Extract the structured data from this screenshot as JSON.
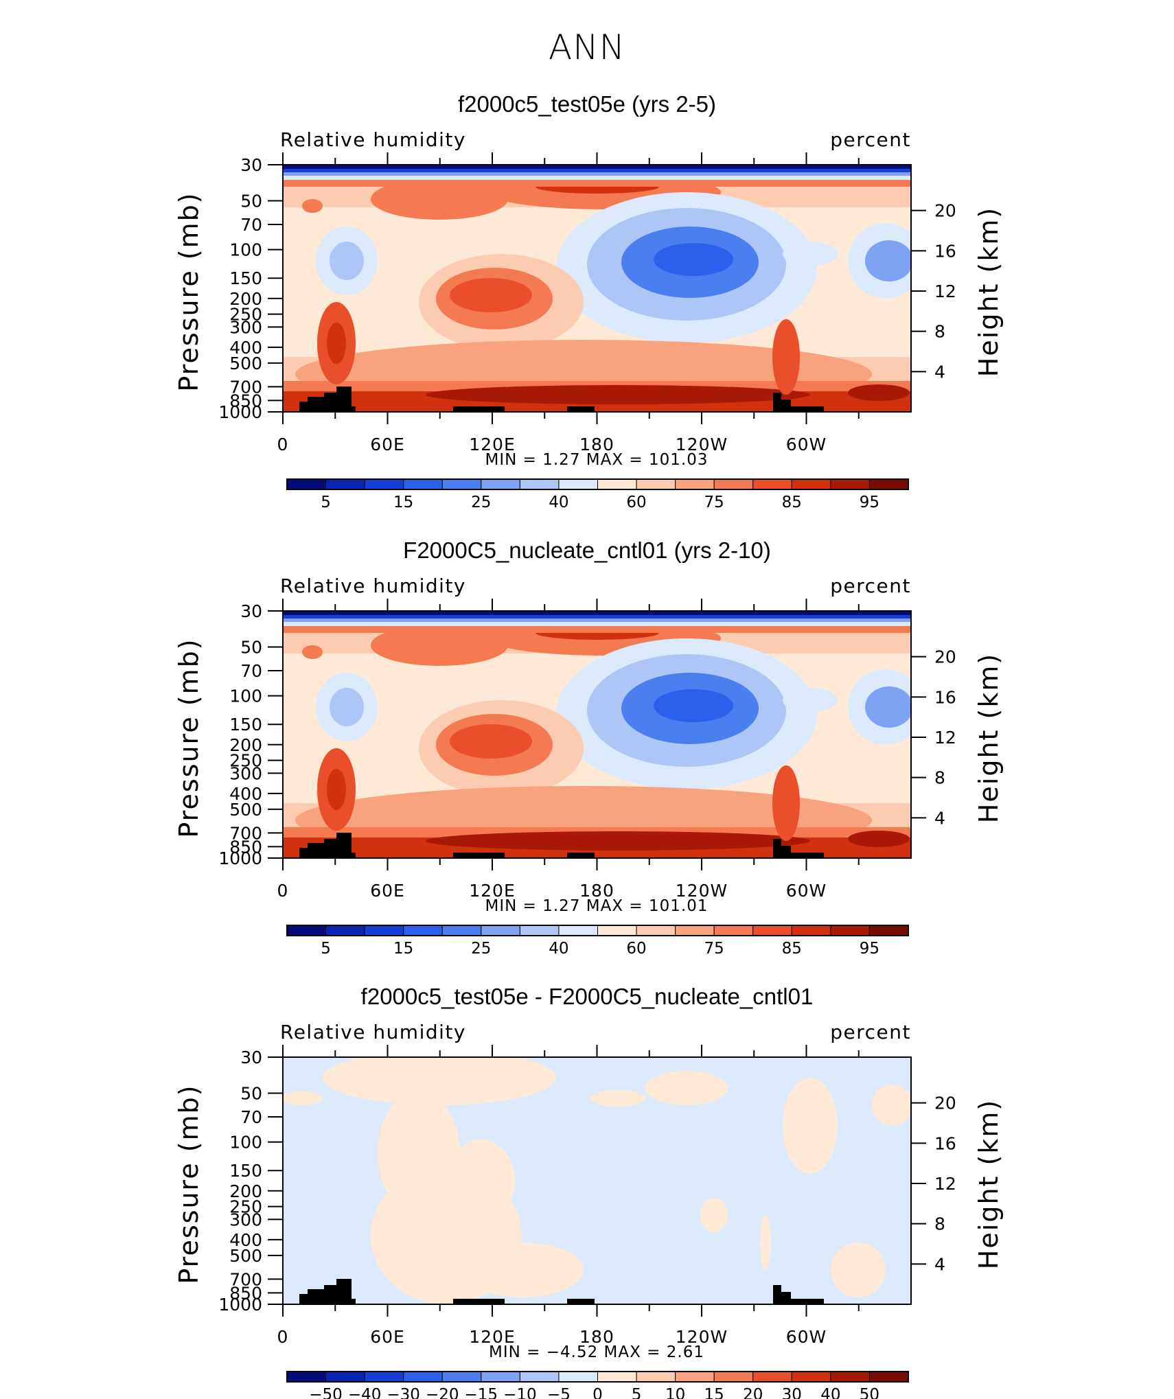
{
  "title": "ANN",
  "chart_data": [
    {
      "type": "heatmap",
      "title": "f2000c5_test05e (yrs 2-5)",
      "left_label": "Relative humidity",
      "right_label": "percent",
      "ylabel": "Pressure (mb)",
      "y2label": "Height (km)",
      "x_ticks": [
        "0",
        "60E",
        "120E",
        "180",
        "120W",
        "60W"
      ],
      "y_ticks": [
        "30",
        "50",
        "70",
        "100",
        "150",
        "200",
        "250",
        "300",
        "400",
        "500",
        "700",
        "850",
        "1000"
      ],
      "y2_ticks": [
        "20",
        "16",
        "12",
        "8",
        "4"
      ],
      "stats_text": "MIN =     1.27   MAX =  101.03",
      "min": 1.27,
      "max": 101.03,
      "colorbar_labels": [
        "5",
        "15",
        "25",
        "40",
        "60",
        "75",
        "85",
        "95"
      ],
      "colorbar_levels": [
        5,
        10,
        15,
        20,
        25,
        30,
        40,
        50,
        60,
        65,
        75,
        80,
        85,
        90,
        95
      ]
    },
    {
      "type": "heatmap",
      "title": "F2000C5_nucleate_cntl01 (yrs 2-10)",
      "left_label": "Relative humidity",
      "right_label": "percent",
      "ylabel": "Pressure (mb)",
      "y2label": "Height (km)",
      "x_ticks": [
        "0",
        "60E",
        "120E",
        "180",
        "120W",
        "60W"
      ],
      "y_ticks": [
        "30",
        "50",
        "70",
        "100",
        "150",
        "200",
        "250",
        "300",
        "400",
        "500",
        "700",
        "850",
        "1000"
      ],
      "y2_ticks": [
        "20",
        "16",
        "12",
        "8",
        "4"
      ],
      "stats_text": "MIN =     1.27   MAX =  101.01",
      "min": 1.27,
      "max": 101.01,
      "colorbar_labels": [
        "5",
        "15",
        "25",
        "40",
        "60",
        "75",
        "85",
        "95"
      ],
      "colorbar_levels": [
        5,
        10,
        15,
        20,
        25,
        30,
        40,
        50,
        60,
        65,
        75,
        80,
        85,
        90,
        95
      ]
    },
    {
      "type": "heatmap",
      "title": "f2000c5_test05e - F2000C5_nucleate_cntl01",
      "left_label": "Relative humidity",
      "right_label": "percent",
      "ylabel": "Pressure (mb)",
      "y2label": "Height (km)",
      "x_ticks": [
        "0",
        "60E",
        "120E",
        "180",
        "120W",
        "60W"
      ],
      "y_ticks": [
        "30",
        "50",
        "70",
        "100",
        "150",
        "200",
        "250",
        "300",
        "400",
        "500",
        "700",
        "850",
        "1000"
      ],
      "y2_ticks": [
        "20",
        "16",
        "12",
        "8",
        "4"
      ],
      "stats_text": "MIN =   −4.52   MAX =     2.61",
      "min": -4.52,
      "max": 2.61,
      "colorbar_labels": [
        "−50",
        "−40",
        "−30",
        "−20",
        "−15",
        "−10",
        "−5",
        "0",
        "5",
        "10",
        "15",
        "20",
        "30",
        "40",
        "50"
      ],
      "colorbar_levels": [
        -50,
        -40,
        -30,
        -20,
        -15,
        -10,
        -5,
        0,
        5,
        10,
        15,
        20,
        30,
        40,
        50
      ]
    }
  ],
  "colors": {
    "colorbar": [
      "#050b7a",
      "#0a25b3",
      "#1440d8",
      "#2a60ea",
      "#4b7fef",
      "#7ea3f2",
      "#adc6f6",
      "#dbe9fb",
      "#fde9d6",
      "#fccbb0",
      "#f9a27e",
      "#f47a52",
      "#ea4f2c",
      "#d2310f",
      "#a81a06",
      "#7a0b02"
    ],
    "terrain": "#000000"
  }
}
